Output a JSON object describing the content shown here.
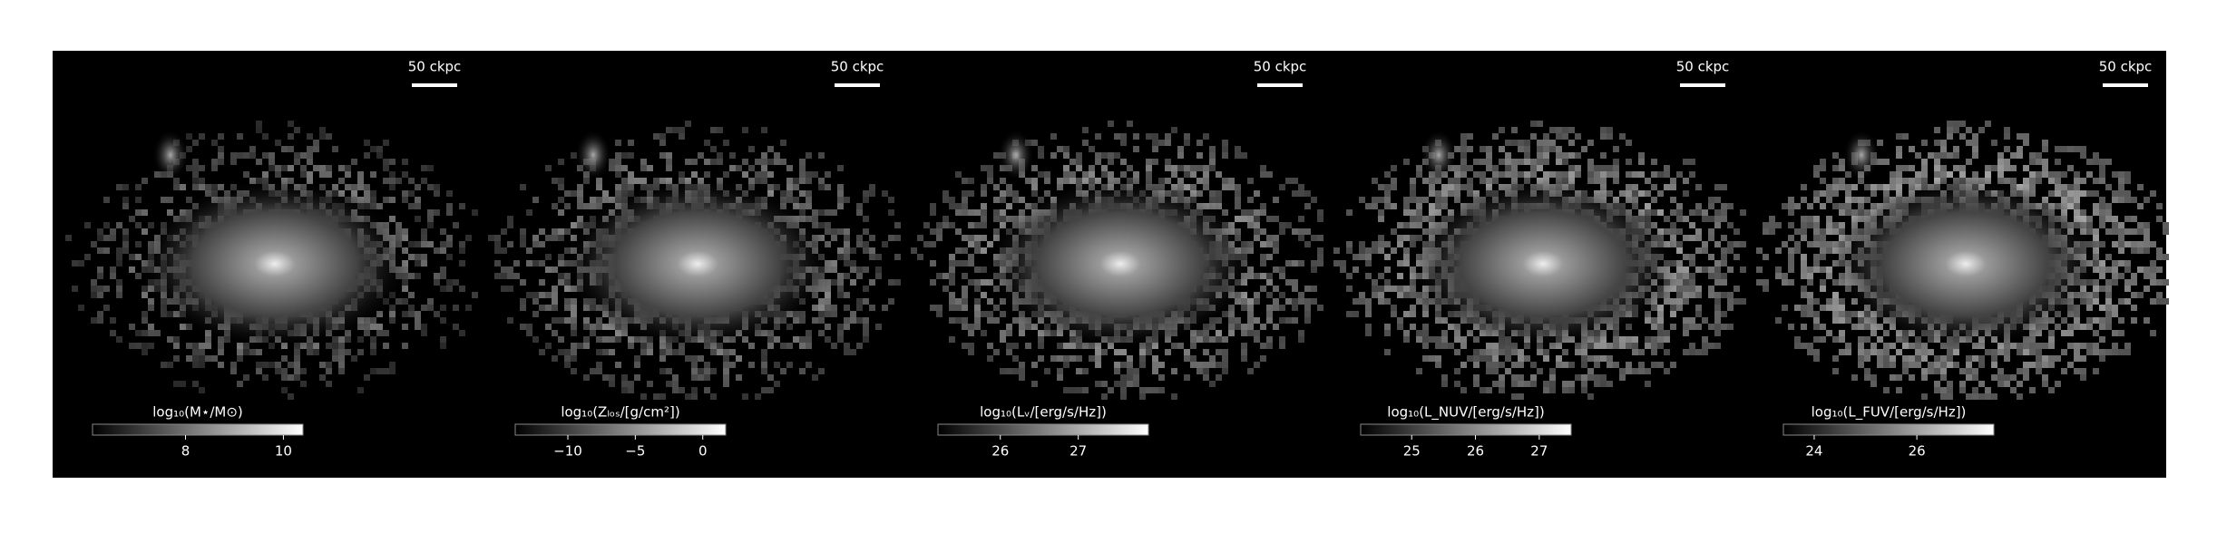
{
  "panels": [
    {
      "scale_bar": "50 ckpc",
      "colorbar": {
        "label": "log₁₀(M⋆/M⊙)",
        "lim": [
          6.1,
          10.4
        ],
        "ticks": [
          8,
          10
        ]
      }
    },
    {
      "scale_bar": "50 ckpc",
      "colorbar": {
        "label": "log₁₀(Zₗₒₛ/[g/cm²])",
        "lim": [
          -13.9,
          1.7
        ],
        "ticks": [
          {
            "value": -10,
            "label": "−10"
          },
          {
            "value": -5,
            "label": "−5"
          },
          0
        ]
      }
    },
    {
      "scale_bar": "50 ckpc",
      "colorbar": {
        "label": "log₁₀(Lᵥ/[erg/s/Hz])",
        "lim": [
          25.2,
          27.9
        ],
        "ticks": [
          26,
          27
        ]
      }
    },
    {
      "scale_bar": "50 ckpc",
      "colorbar": {
        "label": "log₁₀(L_NUV/[erg/s/Hz])",
        "lim": [
          24.2,
          27.5
        ],
        "ticks": [
          25,
          26,
          27
        ]
      }
    },
    {
      "scale_bar": "50 ckpc",
      "colorbar": {
        "label": "log₁₀(L_FUV/[erg/s/Hz])",
        "lim": [
          23.4,
          27.5
        ],
        "ticks": [
          24,
          26
        ]
      }
    }
  ]
}
